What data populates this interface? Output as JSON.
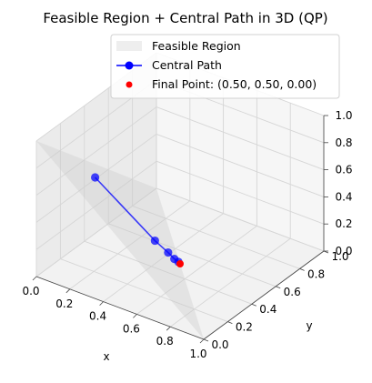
{
  "chart_data": {
    "type": "3d-line",
    "title": "Feasible Region + Central Path in 3D (QP)",
    "xlabel": "x",
    "ylabel": "y",
    "zlabel": "",
    "xlim": [
      0,
      1
    ],
    "ylim": [
      0,
      1
    ],
    "zlim": [
      0,
      1
    ],
    "x_ticks": [
      "0.0",
      "0.2",
      "0.4",
      "0.6",
      "0.8",
      "1.0"
    ],
    "y_ticks": [
      "0.0",
      "0.2",
      "0.4",
      "0.6",
      "0.8",
      "1.0"
    ],
    "z_ticks": [
      "0.0",
      "0.2",
      "0.4",
      "0.6",
      "0.8",
      "1.0"
    ],
    "grid": true,
    "legend_position": "top-right",
    "feasible_region": {
      "name": "Feasible Region",
      "vertices": [
        [
          1,
          0,
          0
        ],
        [
          0,
          1,
          0
        ],
        [
          0,
          0,
          1
        ]
      ],
      "color": "#c8c8c8"
    },
    "central_path": {
      "name": "Central Path",
      "color": "#0000ff",
      "points": [
        {
          "x": 0.1,
          "y": 0.35,
          "z": 0.55
        },
        {
          "x": 0.4,
          "y": 0.43,
          "z": 0.17
        },
        {
          "x": 0.45,
          "y": 0.47,
          "z": 0.08
        },
        {
          "x": 0.48,
          "y": 0.48,
          "z": 0.04
        },
        {
          "x": 0.49,
          "y": 0.5,
          "z": 0.01
        }
      ]
    },
    "final_point": {
      "name": "Final Point: (0.50, 0.50, 0.00)",
      "x": 0.5,
      "y": 0.5,
      "z": 0.0,
      "color": "#ff0000"
    }
  }
}
